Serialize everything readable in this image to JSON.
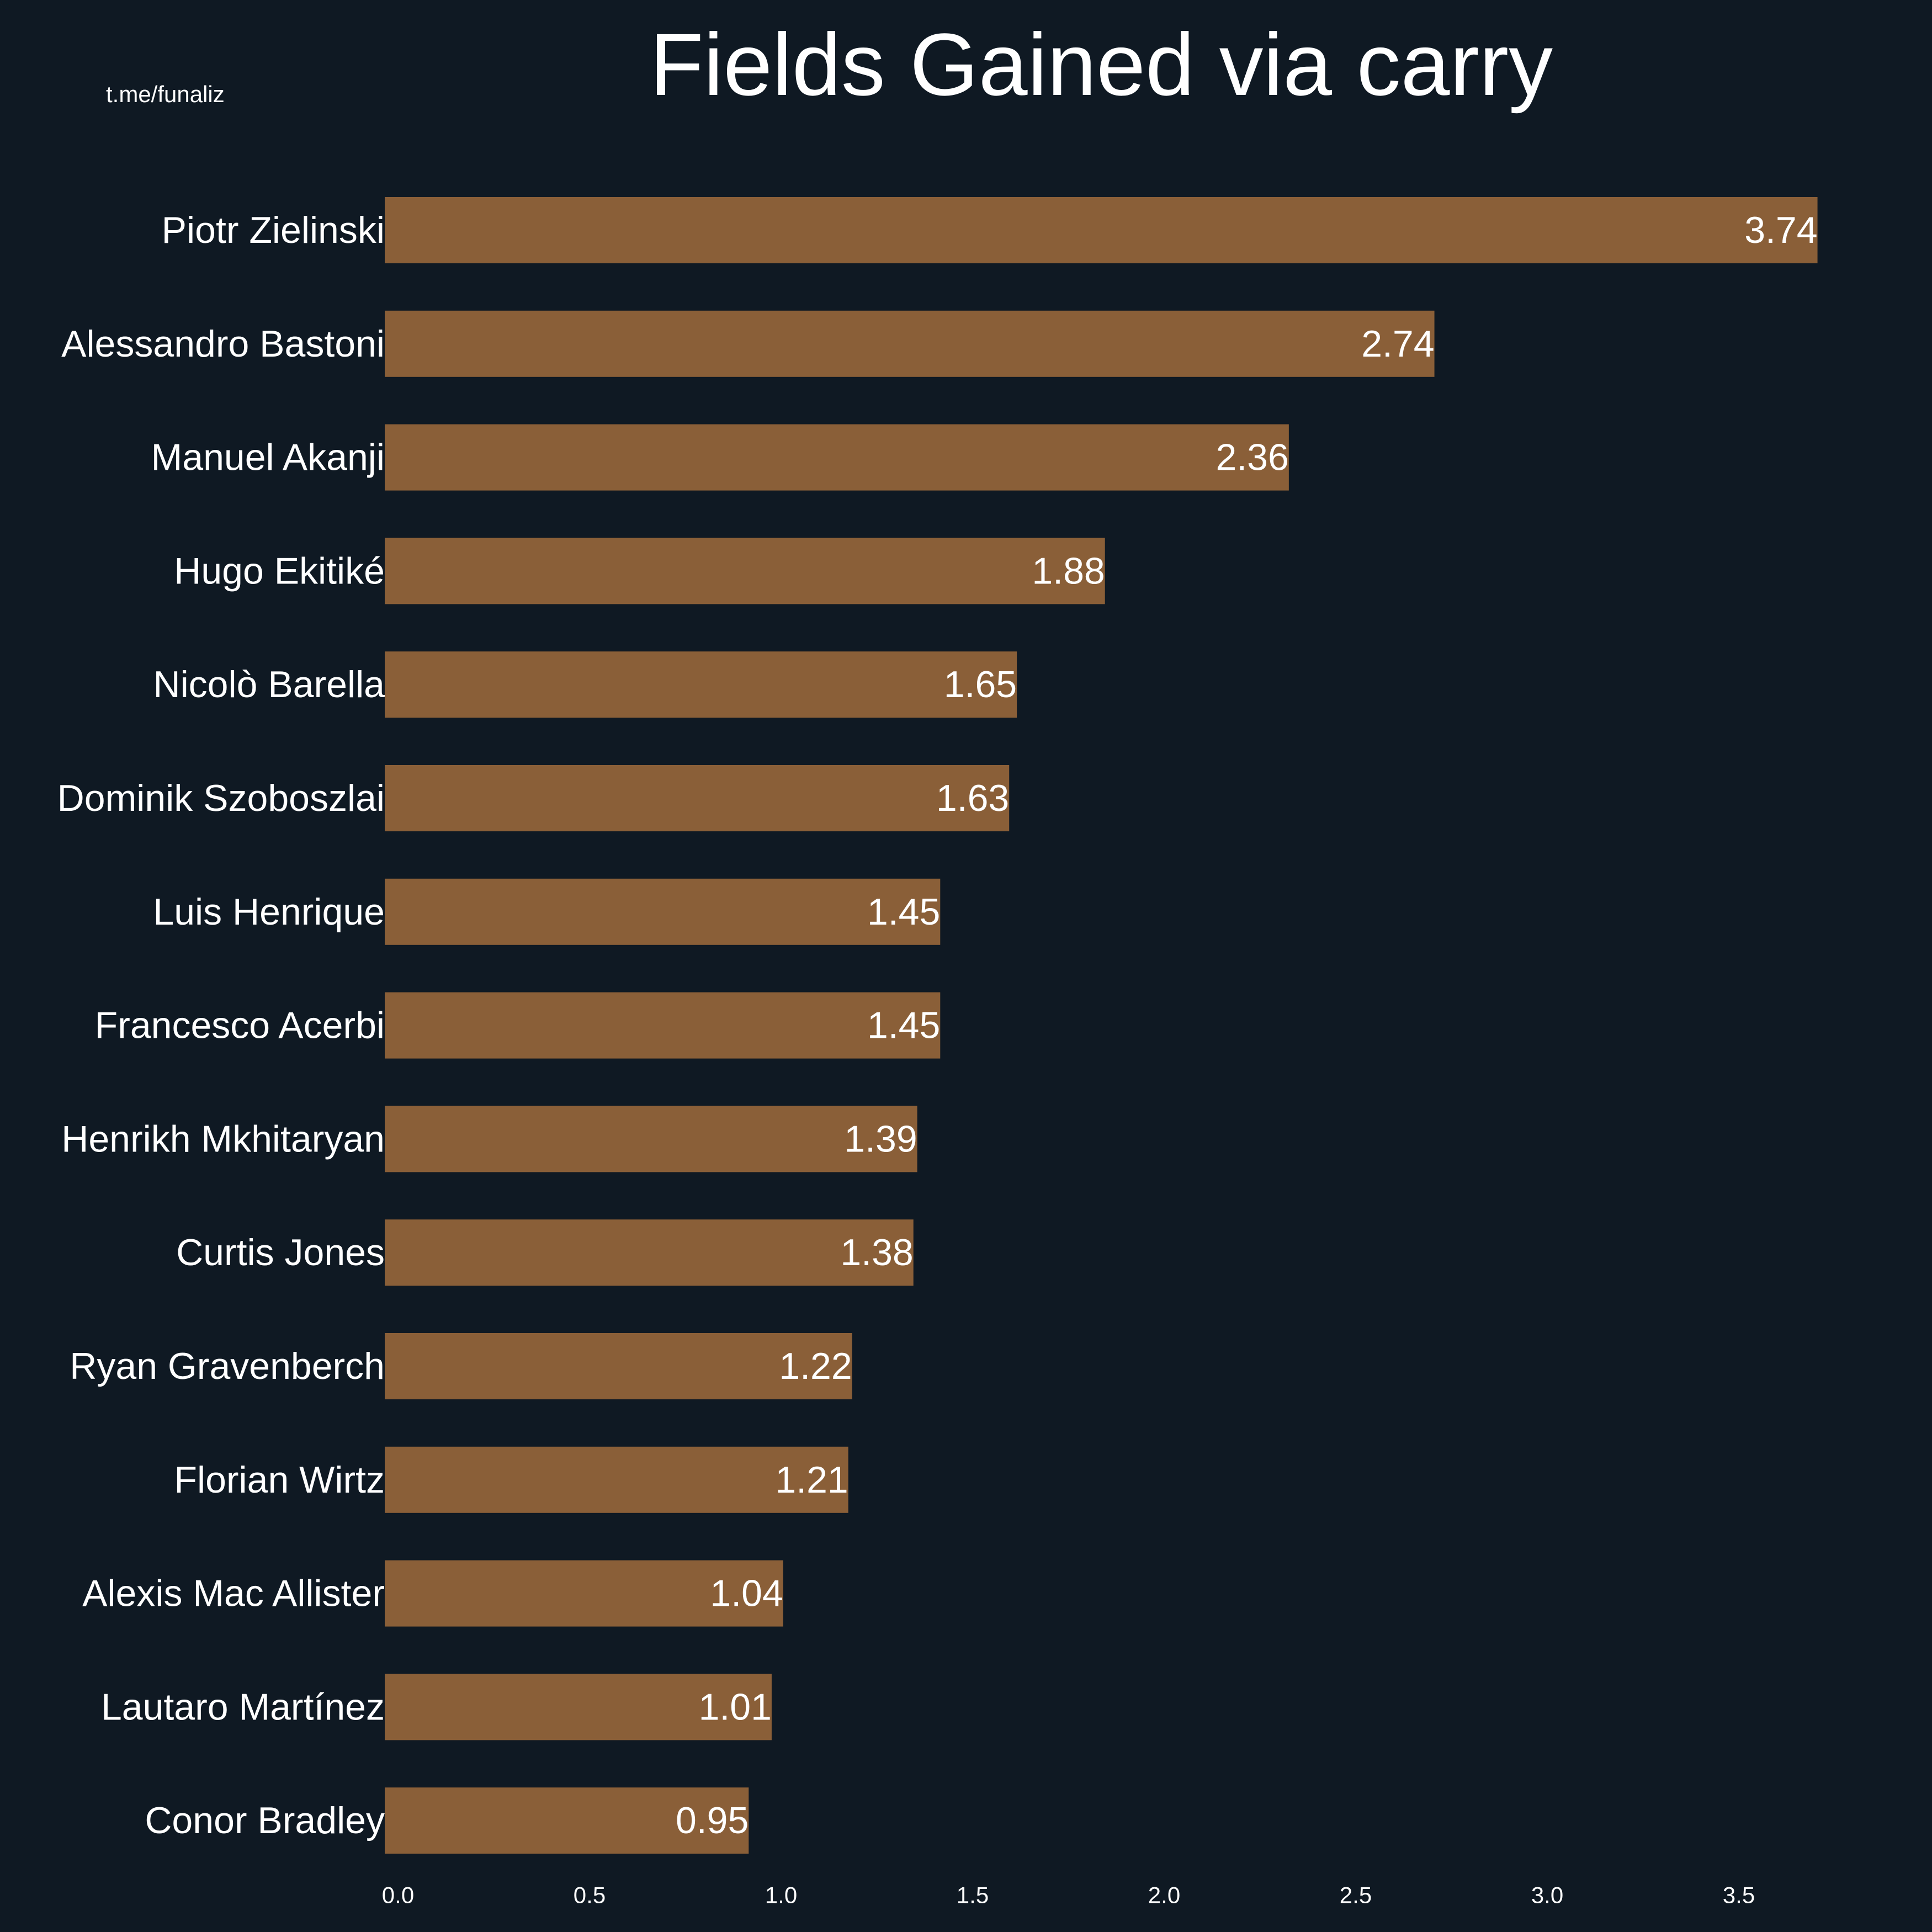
{
  "credit": "t.me/funaliz",
  "chart_data": {
    "type": "bar",
    "orientation": "horizontal",
    "title": "Fields Gained via carry",
    "xlabel": "",
    "ylabel": "",
    "categories": [
      "Piotr Zielinski",
      "Alessandro Bastoni",
      "Manuel Akanji",
      "Hugo Ekitiké",
      "Nicolò Barella",
      "Dominik Szoboszlai",
      "Luis Henrique",
      "Francesco Acerbi",
      "Henrikh Mkhitaryan",
      "Curtis Jones",
      "Ryan Gravenberch",
      "Florian Wirtz",
      "Alexis Mac Allister",
      "Lautaro Martínez",
      "Conor Bradley"
    ],
    "values": [
      3.74,
      2.74,
      2.36,
      1.88,
      1.65,
      1.63,
      1.45,
      1.45,
      1.39,
      1.38,
      1.22,
      1.21,
      1.04,
      1.01,
      0.95
    ],
    "value_labels": [
      "3.74",
      "2.74",
      "2.36",
      "1.88",
      "1.65",
      "1.63",
      "1.45",
      "1.45",
      "1.39",
      "1.38",
      "1.22",
      "1.21",
      "1.04",
      "1.01",
      "0.95"
    ],
    "xticks": [
      0.0,
      0.5,
      1.0,
      1.5,
      2.0,
      2.5,
      3.0,
      3.5
    ],
    "xtick_labels": [
      "0.0",
      "0.5",
      "1.0",
      "1.5",
      "2.0",
      "2.5",
      "3.0",
      "3.5"
    ],
    "xlim": [
      0,
      3.74
    ],
    "grid": false,
    "legend": "none",
    "bar_color": "#8a5f38",
    "background_color": "#0f1923",
    "text_color": "#ffffff"
  }
}
